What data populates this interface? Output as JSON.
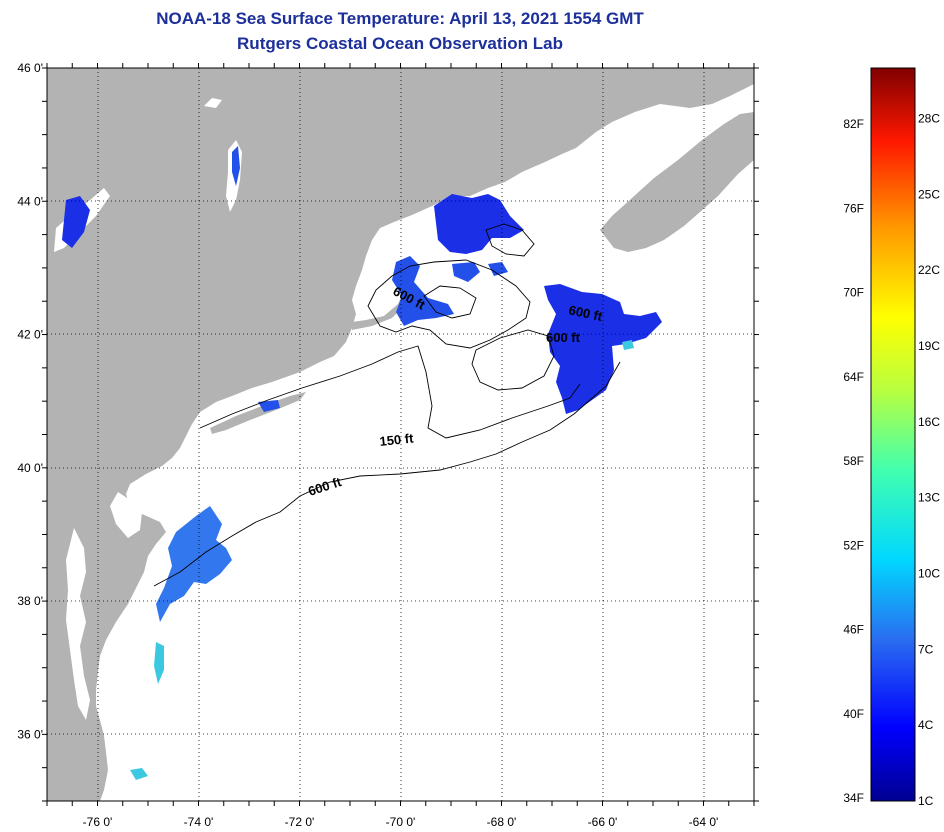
{
  "title": {
    "line1": "NOAA-18 Sea Surface Temperature:  April 13, 2021 1554 GMT",
    "line2": "Rutgers Coastal Ocean Observation Lab"
  },
  "map": {
    "lon_range": [
      -77,
      -63
    ],
    "lat_range": [
      35,
      46
    ],
    "lon_ticks": [
      {
        "value": -76,
        "label": "-76 0'"
      },
      {
        "value": -74,
        "label": "-74 0'"
      },
      {
        "value": -72,
        "label": "-72 0'"
      },
      {
        "value": -70,
        "label": "-70 0'"
      },
      {
        "value": -68,
        "label": "-68 0'"
      },
      {
        "value": -66,
        "label": "-66 0'"
      },
      {
        "value": -64,
        "label": "-64 0'"
      }
    ],
    "lat_ticks": [
      {
        "value": 36,
        "label": "36 0'"
      },
      {
        "value": 38,
        "label": "38 0'"
      },
      {
        "value": 40,
        "label": "40 0'"
      },
      {
        "value": 42,
        "label": "42 0'"
      },
      {
        "value": 44,
        "label": "44 0'"
      },
      {
        "value": 46,
        "label": "46 0'"
      }
    ],
    "contour_labels": {
      "gulf_600_north": "600 ft",
      "gulf_600_a": "600 ft",
      "gulf_600_b": "600 ft",
      "shelf_150": "150 ft",
      "shelf_600": "600 ft"
    },
    "colors": {
      "land": "#b3b3b3",
      "ocean": "#ffffff",
      "sst_blue_deep": "#1a2fe6",
      "sst_blue_mid": "#2250e8",
      "sst_blue_light": "#3377ee",
      "sst_cyan": "#3cc8e0"
    }
  },
  "colorbar": {
    "min_c": 1,
    "max_c": 30,
    "fahrenheit_labels": [
      "82F",
      "76F",
      "70F",
      "64F",
      "58F",
      "52F",
      "46F",
      "40F",
      "34F"
    ],
    "celsius_labels": [
      "28C",
      "25C",
      "22C",
      "19C",
      "16C",
      "13C",
      "10C",
      "7C",
      "4C",
      "1C"
    ]
  }
}
